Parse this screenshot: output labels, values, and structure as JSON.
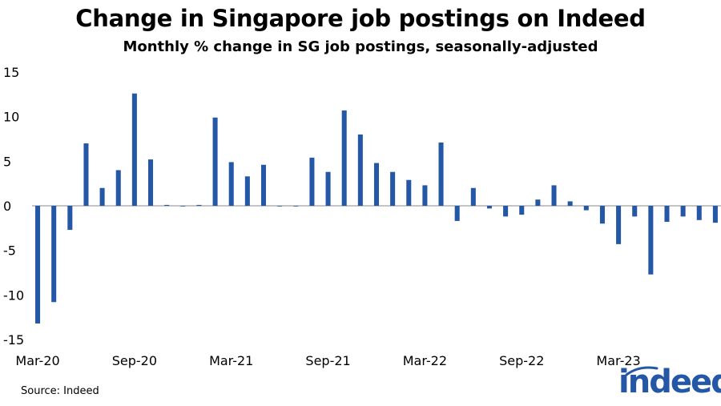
{
  "title": "Change in Singapore job postings on Indeed",
  "subtitle": "Monthly % change in SG job postings, seasonally-adjusted",
  "source": "Source: Indeed",
  "logo_text": "indeed",
  "colors": {
    "bar": "#2557a7",
    "logo": "#2557a7"
  },
  "chart_data": {
    "type": "bar",
    "categories": [
      "Mar-20",
      "Apr-20",
      "May-20",
      "Jun-20",
      "Jul-20",
      "Aug-20",
      "Sep-20",
      "Oct-20",
      "Nov-20",
      "Dec-20",
      "Jan-21",
      "Feb-21",
      "Mar-21",
      "Apr-21",
      "May-21",
      "Jun-21",
      "Jul-21",
      "Aug-21",
      "Sep-21",
      "Oct-21",
      "Nov-21",
      "Dec-21",
      "Jan-22",
      "Feb-22",
      "Mar-22",
      "Apr-22",
      "May-22",
      "Jun-22",
      "Jul-22",
      "Aug-22",
      "Sep-22",
      "Oct-22",
      "Nov-22",
      "Dec-22",
      "Jan-23",
      "Feb-23",
      "Mar-23",
      "Apr-23",
      "May-23",
      "Jun-23",
      "Jul-23",
      "Aug-23",
      "Sep-23"
    ],
    "values": [
      -13.2,
      -10.8,
      -2.7,
      7.0,
      2.0,
      4.0,
      12.6,
      5.2,
      0.1,
      0.0,
      0.1,
      9.9,
      4.9,
      3.3,
      4.6,
      0.0,
      0.0,
      5.4,
      3.8,
      10.7,
      8.0,
      4.8,
      3.8,
      2.9,
      2.3,
      7.1,
      -1.7,
      2.0,
      -0.3,
      -1.2,
      -1.0,
      0.7,
      2.3,
      0.5,
      -0.5,
      -2.0,
      -4.3,
      -1.2,
      -7.7,
      -1.8,
      -1.2,
      -1.6,
      -1.9
    ],
    "xticks": [
      "Mar-20",
      "Sep-20",
      "Mar-21",
      "Sep-21",
      "Mar-22",
      "Sep-22",
      "Mar-23"
    ],
    "yticks": [
      15,
      10,
      5,
      0,
      -5,
      -10,
      -15
    ],
    "ytick_labels": [
      "15",
      "10",
      "5",
      "0",
      "-5",
      "-10",
      "-15"
    ],
    "ylim": [
      -15,
      15
    ],
    "xlabel": "",
    "ylabel": "",
    "grid": false
  }
}
